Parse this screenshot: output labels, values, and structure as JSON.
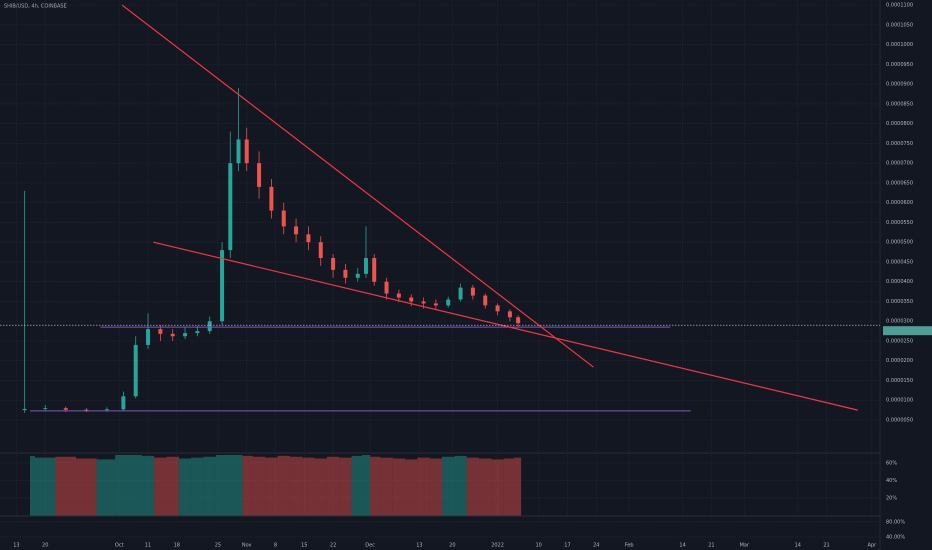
{
  "chart_data": {
    "type": "candlestick",
    "title": "SHIB/USD, 4h, COINBASE",
    "up_color": "#26a69a",
    "down_color": "#ef5350",
    "grid": true,
    "xlim": [
      1,
      215
    ],
    "ylim": [
      -3.1e-06,
      0.0001113
    ],
    "xticks": [
      {
        "value": 5,
        "label": "13"
      },
      {
        "value": 12,
        "label": "20"
      },
      {
        "value": 30,
        "label": "Oct"
      },
      {
        "value": 37,
        "label": "11"
      },
      {
        "value": 44,
        "label": "18"
      },
      {
        "value": 54,
        "label": "25"
      },
      {
        "value": 61,
        "label": "Nov"
      },
      {
        "value": 68,
        "label": "8"
      },
      {
        "value": 75,
        "label": "15"
      },
      {
        "value": 82,
        "label": "22"
      },
      {
        "value": 91,
        "label": "Dec"
      },
      {
        "value": 103,
        "label": "13"
      },
      {
        "value": 111,
        "label": "20"
      },
      {
        "value": 122,
        "label": "2022"
      },
      {
        "value": 132,
        "label": "10"
      },
      {
        "value": 139,
        "label": "17"
      },
      {
        "value": 146,
        "label": "24"
      },
      {
        "value": 154,
        "label": "Feb"
      },
      {
        "value": 167,
        "label": "14"
      },
      {
        "value": 174,
        "label": "21"
      },
      {
        "value": 182,
        "label": "Mar"
      },
      {
        "value": 195,
        "label": "14"
      },
      {
        "value": 202,
        "label": "21"
      },
      {
        "value": 213,
        "label": "Apr"
      }
    ],
    "yticks": [
      {
        "value": 0.00011,
        "label": "0.0001100"
      },
      {
        "value": 0.000105,
        "label": "0.0001050"
      },
      {
        "value": 0.0001,
        "label": "0.0001000"
      },
      {
        "value": 9.5e-05,
        "label": "0.0000950"
      },
      {
        "value": 9e-05,
        "label": "0.0000900"
      },
      {
        "value": 8.5e-05,
        "label": "0.0000850"
      },
      {
        "value": 8e-05,
        "label": "0.0000800"
      },
      {
        "value": 7.5e-05,
        "label": "0.0000750"
      },
      {
        "value": 7e-05,
        "label": "0.0000700"
      },
      {
        "value": 6.5e-05,
        "label": "0.0000650"
      },
      {
        "value": 6e-05,
        "label": "0.0000600"
      },
      {
        "value": 5.5e-05,
        "label": "0.0000550"
      },
      {
        "value": 5e-05,
        "label": "0.0000500"
      },
      {
        "value": 4.5e-05,
        "label": "0.0000450"
      },
      {
        "value": 4e-05,
        "label": "0.0000400"
      },
      {
        "value": 3.5e-05,
        "label": "0.0000350"
      },
      {
        "value": 3e-05,
        "label": "0.0000300"
      },
      {
        "value": 2.5e-05,
        "label": "0.0000250"
      },
      {
        "value": 2e-05,
        "label": "0.0000200"
      },
      {
        "value": 1.5e-05,
        "label": "0.0000150"
      },
      {
        "value": 1e-05,
        "label": "0.0000100"
      },
      {
        "value": 5e-06,
        "label": "0.0000050"
      }
    ],
    "x": [
      7,
      12,
      17,
      22,
      27,
      31,
      34,
      37,
      40,
      43,
      46,
      49,
      52,
      55,
      57,
      59,
      61,
      64,
      67,
      70,
      73,
      76,
      79,
      82,
      85,
      88,
      90,
      92,
      95,
      98,
      101,
      104,
      107,
      110,
      113,
      116,
      119,
      122,
      125,
      127
    ],
    "open": [
      7.5e-06,
      7.8e-06,
      8e-06,
      7.6e-06,
      7.5e-06,
      7.7e-06,
      1.1e-05,
      2.4e-05,
      2.8e-05,
      2.68e-05,
      2.62e-05,
      2.7e-05,
      2.75e-05,
      3e-05,
      4.8e-05,
      7e-05,
      7.6e-05,
      7e-05,
      6.4e-05,
      5.8e-05,
      5.4e-05,
      5.2e-05,
      5e-05,
      4.6e-05,
      4.3e-05,
      4.1e-05,
      4.2e-05,
      4.6e-05,
      4e-05,
      3.7e-05,
      3.6e-05,
      3.5e-05,
      3.45e-05,
      3.4e-05,
      3.55e-05,
      3.85e-05,
      3.65e-05,
      3.4e-05,
      3.25e-05,
      3.1e-05
    ],
    "high": [
      6.3e-05,
      8.8e-06,
      8.4e-06,
      8e-06,
      8.2e-06,
      1.22e-05,
      2.62e-05,
      3.2e-05,
      2.9e-05,
      2.8e-05,
      2.84e-05,
      2.88e-05,
      3.12e-05,
      5e-05,
      7.8e-05,
      8.9e-05,
      7.9e-05,
      7.3e-05,
      6.6e-05,
      6e-05,
      5.6e-05,
      5.4e-05,
      5.15e-05,
      4.7e-05,
      4.45e-05,
      4.35e-05,
      5.4e-05,
      4.7e-05,
      4.1e-05,
      3.8e-05,
      3.68e-05,
      3.6e-05,
      3.55e-05,
      3.62e-05,
      3.95e-05,
      3.92e-05,
      3.7e-05,
      3.45e-05,
      3.3e-05,
      3.15e-05
    ],
    "low": [
      6.8e-06,
      7.2e-06,
      7e-06,
      7e-06,
      7.1e-06,
      7.4e-06,
      1.05e-05,
      2.3e-05,
      2.5e-05,
      2.5e-05,
      2.55e-05,
      2.62e-05,
      2.68e-05,
      2.9e-05,
      4.6e-05,
      6.8e-05,
      6.8e-05,
      6.1e-05,
      5.6e-05,
      5.2e-05,
      5e-05,
      4.8e-05,
      4.4e-05,
      4.1e-05,
      3.95e-05,
      4e-05,
      4.1e-05,
      3.9e-05,
      3.55e-05,
      3.48e-05,
      3.38e-05,
      3.32e-05,
      3.28e-05,
      3.35e-05,
      3.5e-05,
      3.55e-05,
      3.32e-05,
      3.15e-05,
      3e-05,
      2.85e-05
    ],
    "close": [
      7.8e-06,
      8e-06,
      7.6e-06,
      7.5e-06,
      7.7e-06,
      1.1e-05,
      2.4e-05,
      2.8e-05,
      2.68e-05,
      2.62e-05,
      2.7e-05,
      2.75e-05,
      3e-05,
      4.8e-05,
      7e-05,
      7.6e-05,
      7e-05,
      6.4e-05,
      5.8e-05,
      5.4e-05,
      5.2e-05,
      5e-05,
      4.6e-05,
      4.3e-05,
      4.1e-05,
      4.2e-05,
      4.6e-05,
      4e-05,
      3.7e-05,
      3.6e-05,
      3.5e-05,
      3.45e-05,
      3.4e-05,
      3.55e-05,
      3.85e-05,
      3.65e-05,
      3.4e-05,
      3.25e-05,
      3.1e-05,
      2.95e-05
    ],
    "trendlines": [
      {
        "color": "#f23645",
        "x": [
          30.7,
          145.3
        ],
        "y": [
          0.00011,
          1.84e-05
        ]
      },
      {
        "color": "#f23645",
        "x": [
          38.3,
          209.6
        ],
        "y": [
          5e-05,
          7.5e-06
        ]
      }
    ],
    "hlines": [
      {
        "color": "#7e57c2",
        "x": [
          25.4,
          164
        ],
        "y": 2.85e-05
      },
      {
        "color": "#7e57c2",
        "x": [
          8.3,
          169
        ],
        "y": 7.3e-06
      }
    ],
    "last_price": 2.9e-05,
    "last_price_color": "#4c9e96",
    "indicator": {
      "ylim": [
        0,
        69
      ],
      "yticks": [
        {
          "value": 60,
          "label": "60%"
        },
        {
          "value": 40,
          "label": "40%"
        },
        {
          "value": 20,
          "label": "20%"
        }
      ],
      "values": [
        68,
        66,
        67,
        65,
        64,
        69,
        69,
        68,
        66,
        67,
        65,
        66,
        67,
        69,
        69,
        69,
        68,
        67,
        66,
        68,
        67,
        66,
        65,
        67,
        66,
        68,
        69,
        67,
        66,
        65,
        64,
        66,
        65,
        67,
        68,
        66,
        65,
        64,
        65,
        66
      ]
    },
    "lower_pane": {
      "ylim": [
        0,
        90
      ],
      "yticks": [
        {
          "value": 80,
          "label": "80.00%"
        },
        {
          "value": 40,
          "label": "40.00%"
        }
      ]
    }
  }
}
